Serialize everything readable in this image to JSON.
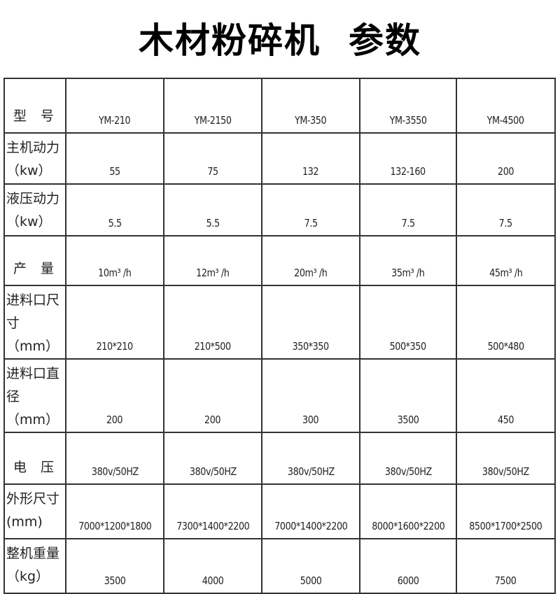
{
  "title": {
    "main": "木材粉碎机",
    "sub": "参数"
  },
  "table": {
    "rows": [
      {
        "label": [
          "型 号"
        ],
        "values": [
          "YM-210",
          "YM-2150",
          "YM-350",
          "YM-3550",
          "YM-4500"
        ]
      },
      {
        "label": [
          "主机动力",
          "（kw）"
        ],
        "values": [
          "55",
          "75",
          "132",
          "132-160",
          "200"
        ]
      },
      {
        "label": [
          "液压动力",
          "（kw）"
        ],
        "values": [
          "5.5",
          "5.5",
          "7.5",
          "7.5",
          "7.5"
        ]
      },
      {
        "label": [
          "产 量"
        ],
        "values": [
          "10m³ /h",
          "12m³ /h",
          "20m³ /h",
          "35m³ /h",
          "45m³ /h"
        ]
      },
      {
        "label": [
          "进料口尺",
          "寸（mm）"
        ],
        "values": [
          "210*210",
          "210*500",
          "350*350",
          "500*350",
          "500*480"
        ]
      },
      {
        "label": [
          "进料口直",
          "径（mm）"
        ],
        "values": [
          "200",
          "200",
          "300",
          "3500",
          "450"
        ]
      },
      {
        "label": [
          "电 压"
        ],
        "values": [
          "380v/50HZ",
          "380v/50HZ",
          "380v/50HZ",
          "380v/50HZ",
          "380v/50HZ"
        ]
      },
      {
        "label": [
          "外形尺寸",
          "(mm)"
        ],
        "values": [
          "7000*1200*1800",
          "7300*1400*2200",
          "7000*1400*2200",
          "8000*1600*2200",
          "8500*1700*2500"
        ]
      },
      {
        "label": [
          "整机重量",
          "（kg）"
        ],
        "values": [
          "3500",
          "4000",
          "5000",
          "6000",
          "7500"
        ]
      }
    ]
  }
}
